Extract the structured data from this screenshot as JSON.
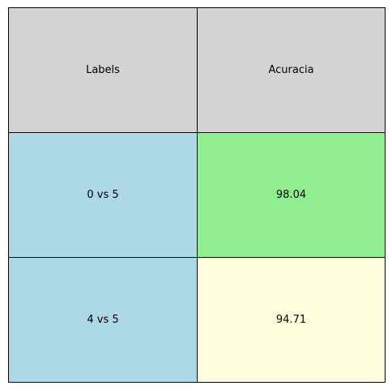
{
  "chart_data": {
    "type": "table",
    "columns": [
      "Labels",
      "Acuracia"
    ],
    "rows": [
      {
        "label": "0 vs 5",
        "value": "98.04"
      },
      {
        "label": "4 vs 5",
        "value": "94.71"
      }
    ],
    "colors": {
      "header": "#d3d3d3",
      "label_cells": "#add8e6",
      "value_cells": [
        "#90ee90",
        "#ffffe0"
      ]
    }
  }
}
